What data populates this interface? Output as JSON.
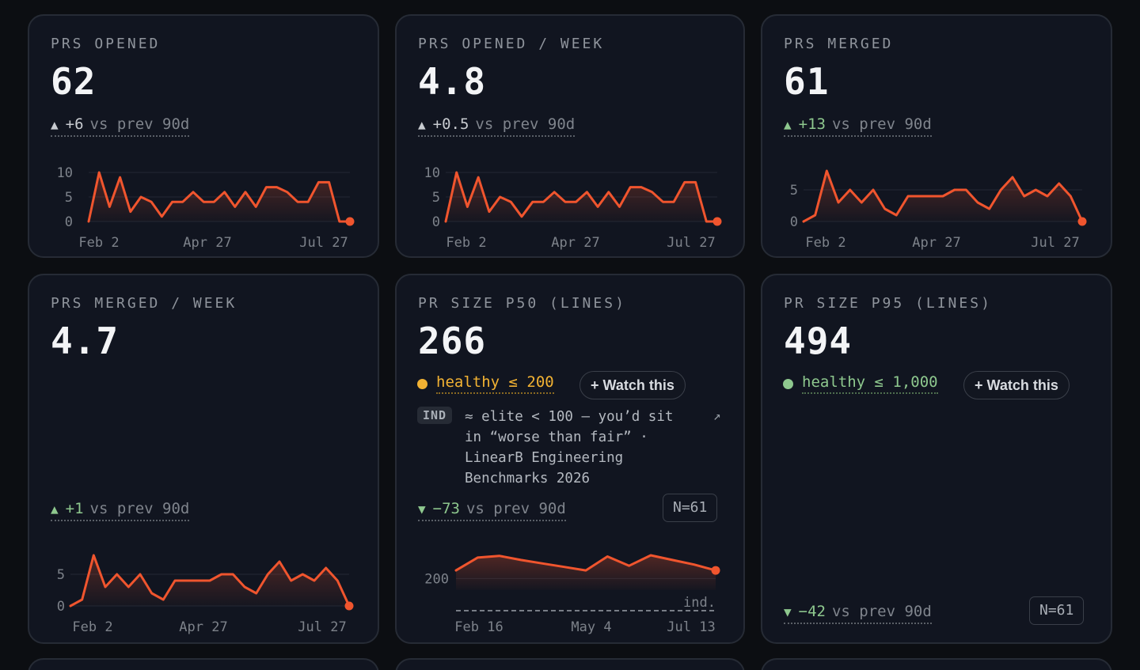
{
  "colors": {
    "background": "#0c0e12",
    "card": "#111520",
    "spark_line": "#f0552e",
    "good": "#8ec88e",
    "warn": "#f2b233"
  },
  "cards": [
    {
      "title": "PRS OPENED",
      "value": "62",
      "delta": {
        "arrow": "▲",
        "value": "+6",
        "text": "vs prev 90d",
        "tone": "neutral"
      },
      "chart": {
        "y_ticks": [
          "10",
          "5",
          "0"
        ],
        "x_ticks": [
          "Feb 2",
          "Apr 27",
          "Jul 27"
        ],
        "ylim": [
          0,
          10
        ],
        "values": [
          0,
          10,
          3,
          9,
          2,
          5,
          4,
          1,
          4,
          4,
          6,
          4,
          4,
          6,
          3,
          6,
          3,
          7,
          7,
          6,
          4,
          4,
          8,
          8,
          0,
          0
        ]
      }
    },
    {
      "title": "PRS OPENED / WEEK",
      "value": "4.8",
      "delta": {
        "arrow": "▲",
        "value": "+0.5",
        "text": "vs prev 90d",
        "tone": "neutral"
      },
      "chart": {
        "y_ticks": [
          "10",
          "5",
          "0"
        ],
        "x_ticks": [
          "Feb 2",
          "Apr 27",
          "Jul 27"
        ],
        "ylim": [
          0,
          10
        ],
        "values": [
          0,
          10,
          3,
          9,
          2,
          5,
          4,
          1,
          4,
          4,
          6,
          4,
          4,
          6,
          3,
          6,
          3,
          7,
          7,
          6,
          4,
          4,
          8,
          8,
          0,
          0
        ]
      }
    },
    {
      "title": "PRS MERGED",
      "value": "61",
      "delta": {
        "arrow": "▲",
        "value": "+13",
        "text": "vs prev 90d",
        "tone": "good"
      },
      "chart": {
        "y_ticks": [
          "5",
          "0"
        ],
        "x_ticks": [
          "Feb 2",
          "Apr 27",
          "Jul 27"
        ],
        "ylim": [
          0,
          9
        ],
        "values": [
          0,
          1,
          8,
          3,
          5,
          3,
          5,
          2,
          1,
          4,
          4,
          4,
          4,
          5,
          5,
          3,
          2,
          5,
          7,
          4,
          5,
          4,
          6,
          4,
          0
        ]
      }
    },
    {
      "title": "PRS MERGED / WEEK",
      "value": "4.7",
      "delta": {
        "arrow": "▲",
        "value": "+1",
        "text": "vs prev 90d",
        "tone": "good"
      },
      "chart": {
        "y_ticks": [
          "5",
          "0"
        ],
        "x_ticks": [
          "Feb 2",
          "Apr 27",
          "Jul 27"
        ],
        "ylim": [
          0,
          9
        ],
        "values": [
          0,
          1,
          8,
          3,
          5,
          3,
          5,
          2,
          1,
          4,
          4,
          4,
          4,
          5,
          5,
          3,
          2,
          5,
          7,
          4,
          5,
          4,
          6,
          4,
          0
        ]
      }
    },
    {
      "title": "PR SIZE P50 (LINES)",
      "value": "266",
      "health": {
        "label": "healthy ≤ 200",
        "color": "#f2b233"
      },
      "watch_label": "+ Watch this",
      "industry": {
        "tag": "IND",
        "lines": [
          "≈ elite < 100 — you’d sit",
          "in “worse than fair” ·",
          "LinearB Engineering",
          "Benchmarks 2026"
        ],
        "icon": "external-link-icon"
      },
      "delta": {
        "arrow": "▼",
        "value": "−73",
        "text": "vs prev 90d",
        "tone": "good"
      },
      "n_badge": "N=61",
      "chart": {
        "y_ticks": [
          "200"
        ],
        "x_ticks": [
          "Feb 16",
          "May 4",
          "Jul 13"
        ],
        "ref_label": "ind.",
        "ylim": [
          100,
          400
        ],
        "values": [
          270,
          380,
          395,
          360,
          330,
          300,
          270,
          390,
          310,
          400,
          360,
          320,
          270
        ]
      }
    },
    {
      "title": "PR SIZE P95 (LINES)",
      "value": "494",
      "health": {
        "label": "healthy ≤ 1,000",
        "color": "#8ec88e"
      },
      "watch_label": "+ Watch this",
      "delta": {
        "arrow": "▼",
        "value": "−42",
        "text": "vs prev 90d",
        "tone": "good"
      },
      "n_badge": "N=61"
    }
  ]
}
